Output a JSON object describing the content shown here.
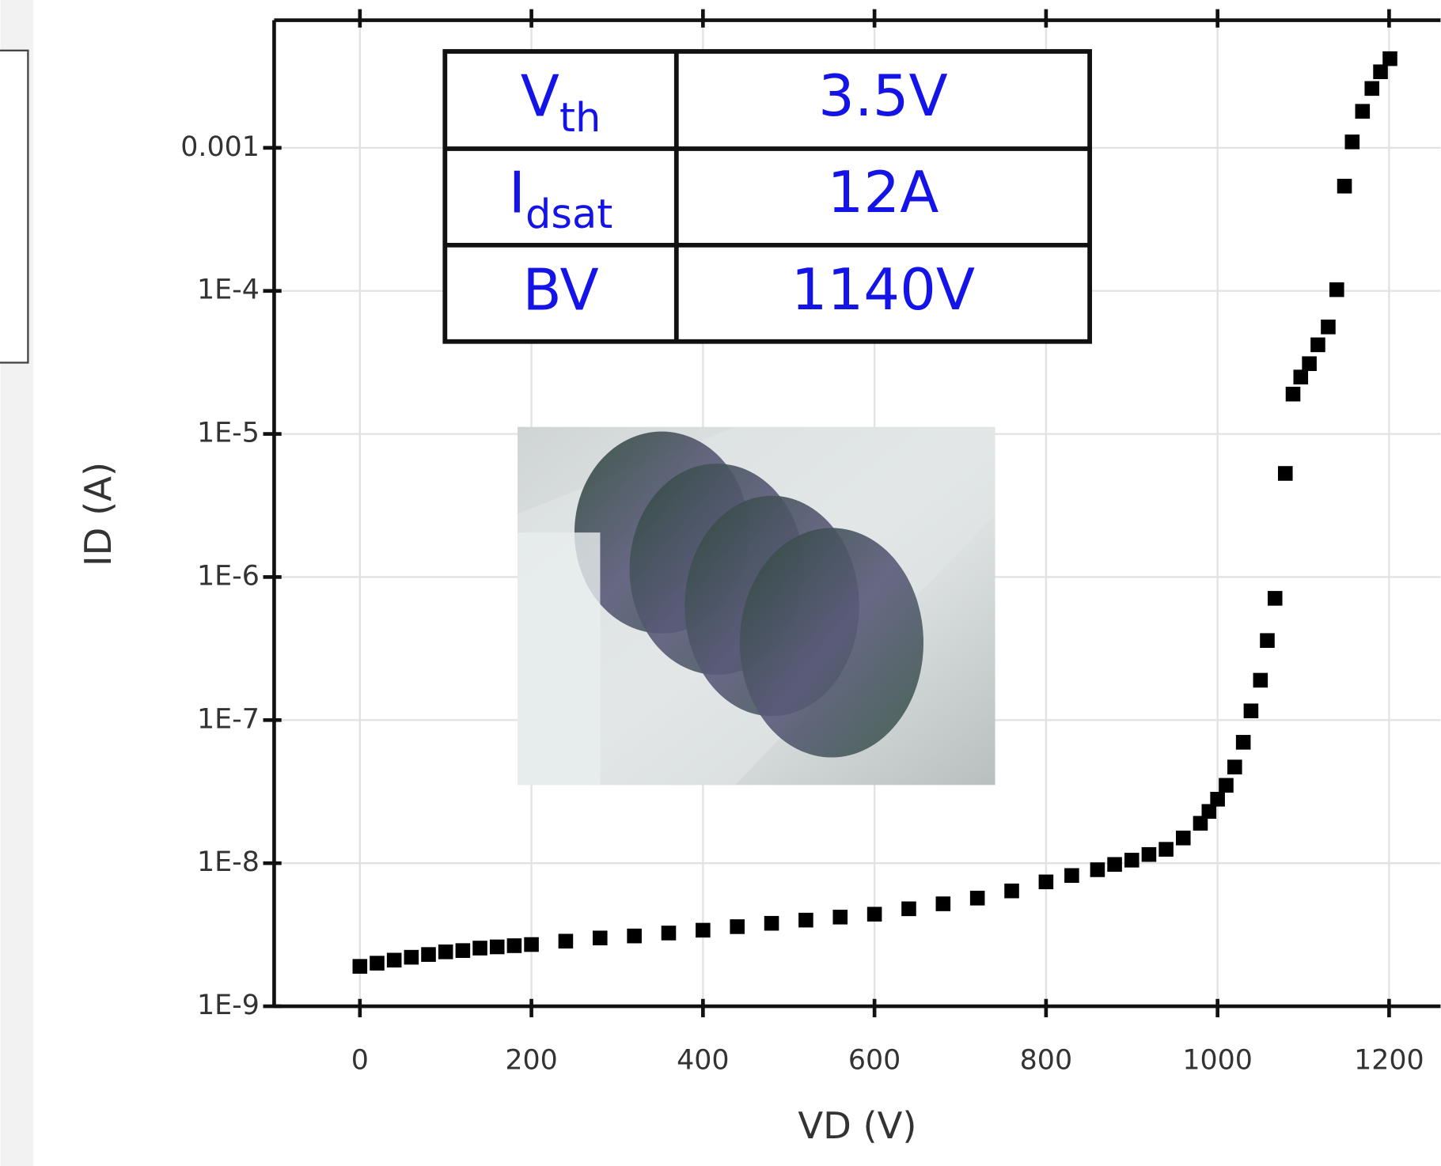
{
  "chart_data": {
    "type": "scatter",
    "x_label": "VD (V)",
    "y_label": "ID (A)",
    "xlim": [
      -100,
      1260
    ],
    "ylim": [
      1e-09,
      0.0078
    ],
    "y_log": true,
    "grid": true,
    "color": "#000000",
    "xticks": [
      0,
      200,
      400,
      600,
      800,
      1000,
      1200
    ],
    "yticks": [
      {
        "value": 1e-09,
        "label": "1E-9"
      },
      {
        "value": 1e-08,
        "label": "1E-8"
      },
      {
        "value": 1e-07,
        "label": "1E-7"
      },
      {
        "value": 1e-06,
        "label": "1E-6"
      },
      {
        "value": 1e-05,
        "label": "1E-5"
      },
      {
        "value": 0.0001,
        "label": "1E-4"
      },
      0.001
    ],
    "x": [
      0,
      20,
      40,
      60,
      80,
      100,
      120,
      140,
      160,
      180,
      200,
      240,
      280,
      320,
      360,
      400,
      440,
      480,
      520,
      560,
      600,
      640,
      680,
      720,
      760,
      800,
      830,
      860,
      880,
      900,
      920,
      940,
      960,
      980,
      990,
      1000,
      1010,
      1020,
      1030,
      1039,
      1050,
      1058,
      1067,
      1079,
      1088,
      1097,
      1107,
      1117,
      1129,
      1139,
      1148,
      1157,
      1169,
      1180,
      1190,
      1201
    ],
    "y": [
      1.9e-09,
      2e-09,
      2.1e-09,
      2.2e-09,
      2.3e-09,
      2.4e-09,
      2.45e-09,
      2.55e-09,
      2.6e-09,
      2.65e-09,
      2.7e-09,
      2.85e-09,
      3e-09,
      3.1e-09,
      3.25e-09,
      3.4e-09,
      3.6e-09,
      3.8e-09,
      4e-09,
      4.2e-09,
      4.4e-09,
      4.8e-09,
      5.2e-09,
      5.7e-09,
      6.4e-09,
      7.4e-09,
      8.2e-09,
      9e-09,
      9.8e-09,
      1.05e-08,
      1.15e-08,
      1.25e-08,
      1.5e-08,
      1.9e-08,
      2.3e-08,
      2.8e-08,
      3.5e-08,
      4.7e-08,
      7e-08,
      1.16e-07,
      1.9e-07,
      3.6e-07,
      7.1e-07,
      5.3e-06,
      1.9e-05,
      2.5e-05,
      3.1e-05,
      4.2e-05,
      5.6e-05,
      0.000102,
      0.00054,
      0.0011,
      0.0018,
      0.0026,
      0.0034,
      0.0042
    ],
    "inset_table": [
      {
        "main": "V",
        "sub": "th",
        "value": "3.5V"
      },
      {
        "main": "I",
        "sub": "dsat",
        "value": "12A"
      },
      {
        "main": "BV",
        "value": "1140V"
      }
    ]
  }
}
